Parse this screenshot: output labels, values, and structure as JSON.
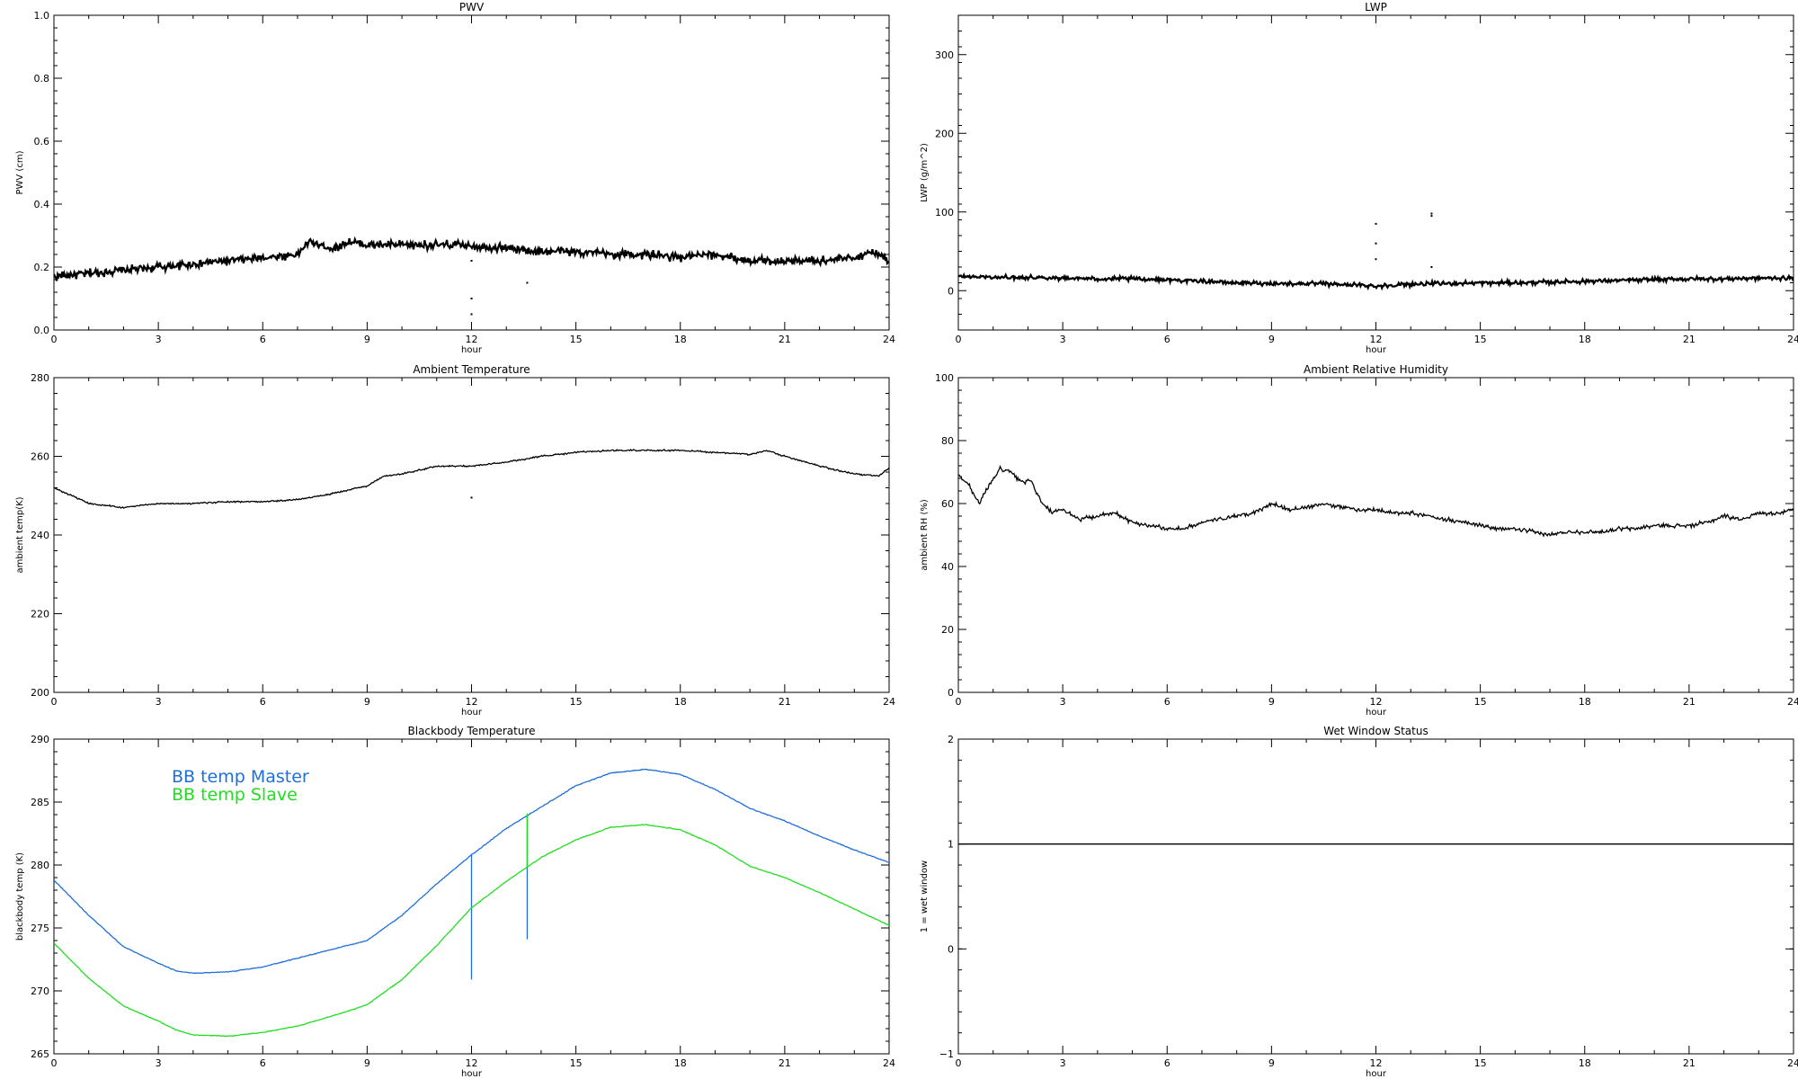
{
  "chart_data": [
    {
      "type": "line",
      "title": "PWV",
      "xlabel": "hour",
      "ylabel": "PWV (cm)",
      "xlim": [
        0,
        24
      ],
      "ylim": [
        0,
        1.0
      ],
      "xticks": [
        "0",
        "3",
        "6",
        "9",
        "12",
        "15",
        "18",
        "21",
        "24"
      ],
      "yticks": [
        "0.0",
        "0.2",
        "0.4",
        "0.6",
        "0.8",
        "1.0"
      ],
      "grid": false,
      "series": [
        {
          "color": "#000000",
          "noise": 0.008,
          "x": [
            0,
            1,
            2,
            3,
            4,
            5,
            6,
            7,
            7.3,
            8,
            8.5,
            9,
            10,
            11,
            12,
            13,
            14,
            15,
            16,
            17,
            18,
            19,
            20,
            21,
            22,
            23,
            23.5,
            24
          ],
          "y": [
            0.17,
            0.18,
            0.19,
            0.2,
            0.21,
            0.22,
            0.23,
            0.24,
            0.28,
            0.26,
            0.28,
            0.27,
            0.27,
            0.27,
            0.27,
            0.26,
            0.25,
            0.25,
            0.24,
            0.24,
            0.23,
            0.24,
            0.22,
            0.22,
            0.22,
            0.23,
            0.25,
            0.22
          ]
        }
      ],
      "outliers": [
        [
          12,
          0.05
        ],
        [
          12,
          0.1
        ],
        [
          12,
          0.22
        ],
        [
          13.6,
          0.15
        ]
      ]
    },
    {
      "type": "line",
      "title": "LWP",
      "xlabel": "hour",
      "ylabel": "LWP (g/m^2)",
      "xlim": [
        0,
        24
      ],
      "ylim": [
        -50,
        350
      ],
      "xticks": [
        "0",
        "3",
        "6",
        "9",
        "12",
        "15",
        "18",
        "21",
        "24"
      ],
      "yticks": [
        "0",
        "100",
        "200",
        "300"
      ],
      "grid": false,
      "series": [
        {
          "color": "#000000",
          "noise": 1.6,
          "x": [
            0,
            1,
            2,
            3,
            4,
            5,
            6,
            7,
            8,
            9,
            10,
            11,
            12,
            13,
            14,
            15,
            16,
            17,
            18,
            19,
            20,
            21,
            22,
            23,
            24
          ],
          "y": [
            18,
            17,
            17,
            16,
            15,
            15,
            14,
            12,
            10,
            9,
            9,
            8,
            6,
            8,
            9,
            10,
            10,
            11,
            12,
            13,
            14,
            15,
            15,
            16,
            16
          ]
        }
      ],
      "outliers": [
        [
          12,
          40
        ],
        [
          12,
          60
        ],
        [
          12,
          85
        ],
        [
          13.6,
          30
        ],
        [
          13.6,
          95
        ],
        [
          13.6,
          98
        ]
      ]
    },
    {
      "type": "line",
      "title": "Ambient Temperature",
      "xlabel": "hour",
      "ylabel": "ambient temp(K)",
      "xlim": [
        0,
        24
      ],
      "ylim": [
        200,
        280
      ],
      "xticks": [
        "0",
        "3",
        "6",
        "9",
        "12",
        "15",
        "18",
        "21",
        "24"
      ],
      "yticks": [
        "200",
        "220",
        "240",
        "260",
        "280"
      ],
      "grid": false,
      "series": [
        {
          "color": "#000000",
          "noise": 0.12,
          "x": [
            0,
            0.5,
            1,
            1.5,
            2,
            3,
            4,
            5,
            6,
            7,
            8,
            9,
            9.5,
            10,
            11,
            12,
            13,
            14,
            15,
            16,
            17,
            18,
            19,
            20,
            20.5,
            21,
            22,
            23,
            23.7,
            24
          ],
          "y": [
            252,
            250,
            248,
            247.5,
            247,
            248,
            248,
            248.5,
            248.5,
            249,
            250.5,
            252.5,
            255,
            255.5,
            257.5,
            257.5,
            258.5,
            260,
            261,
            261.5,
            261.5,
            261.5,
            261,
            260.5,
            261.5,
            260,
            257.5,
            255.5,
            255,
            257
          ]
        }
      ],
      "outliers": [
        [
          12,
          249.5
        ]
      ]
    },
    {
      "type": "line",
      "title": "Ambient Relative Humidity",
      "xlabel": "hour",
      "ylabel": "ambient RH (%)",
      "xlim": [
        0,
        24
      ],
      "ylim": [
        0,
        100
      ],
      "xticks": [
        "0",
        "3",
        "6",
        "9",
        "12",
        "15",
        "18",
        "21",
        "24"
      ],
      "yticks": [
        "0",
        "20",
        "40",
        "60",
        "80",
        "100"
      ],
      "grid": false,
      "series": [
        {
          "color": "#000000",
          "noise": 0.4,
          "x": [
            0,
            0.3,
            0.6,
            0.9,
            1.2,
            1.5,
            1.8,
            2.1,
            2.4,
            2.7,
            3,
            3.5,
            4,
            4.5,
            5,
            5.5,
            6,
            6.5,
            7,
            7.5,
            8,
            8.5,
            9,
            9.5,
            10,
            10.5,
            11,
            11.5,
            12,
            12.5,
            13,
            13.5,
            14,
            14.5,
            15,
            15.5,
            16,
            16.5,
            17,
            17.5,
            18,
            18.5,
            19,
            19.5,
            20,
            20.5,
            21,
            21.5,
            22,
            22.5,
            23,
            23.5,
            24
          ],
          "y": [
            69,
            66,
            60,
            66,
            71,
            70,
            67,
            67,
            60,
            57,
            58,
            55,
            56,
            57,
            54,
            53,
            52,
            52,
            54,
            55,
            56,
            57,
            60,
            58,
            59,
            60,
            59,
            58,
            58,
            57,
            57,
            56,
            55,
            54,
            53,
            52,
            52,
            51,
            50,
            51,
            51,
            51,
            52,
            52,
            53,
            53,
            53,
            54,
            56,
            55,
            57,
            57,
            58
          ]
        }
      ],
      "outliers": []
    },
    {
      "type": "line",
      "title": "Blackbody Temperature",
      "xlabel": "hour",
      "ylabel": "blackbody temp (K)",
      "xlim": [
        0,
        24
      ],
      "ylim": [
        265,
        290
      ],
      "xticks": [
        "0",
        "3",
        "6",
        "9",
        "12",
        "15",
        "18",
        "21",
        "24"
      ],
      "yticks": [
        "265",
        "270",
        "275",
        "280",
        "285",
        "290"
      ],
      "grid": false,
      "legend": "top-left",
      "series": [
        {
          "name": "BB temp Master",
          "color": "#1f6fd8",
          "noise": 0.02,
          "x": [
            0,
            1,
            2,
            3,
            3.5,
            4,
            5,
            6,
            7,
            8,
            9,
            10,
            11,
            12,
            13,
            14,
            15,
            16,
            17,
            18,
            19,
            20,
            21,
            22,
            23,
            24
          ],
          "y": [
            278.8,
            276,
            273.5,
            272.2,
            271.6,
            271.4,
            271.5,
            271.9,
            272.6,
            273.3,
            274,
            276,
            278.5,
            280.8,
            282.9,
            284.6,
            286.3,
            287.3,
            287.6,
            287.2,
            286,
            284.5,
            283.5,
            282.3,
            281.2,
            280.2
          ],
          "spikes": [
            [
              12,
              270.9
            ],
            [
              13.6,
              274.1
            ]
          ]
        },
        {
          "name": "BB temp Slave",
          "color": "#22dd22",
          "noise": 0.02,
          "x": [
            0,
            1,
            2,
            3,
            3.5,
            4,
            5,
            6,
            7,
            8,
            9,
            10,
            11,
            12,
            13,
            14,
            15,
            16,
            17,
            18,
            19,
            20,
            21,
            22,
            23,
            24
          ],
          "y": [
            273.8,
            271,
            268.8,
            267.6,
            266.9,
            266.5,
            266.4,
            266.7,
            267.2,
            268,
            268.9,
            270.9,
            273.6,
            276.6,
            278.7,
            280.6,
            282,
            283,
            283.2,
            282.8,
            281.6,
            279.9,
            279,
            277.8,
            276.5,
            275.2
          ],
          "spikes": [
            [
              13.6,
              284.1
            ]
          ]
        }
      ],
      "outliers": []
    },
    {
      "type": "line",
      "title": "Wet Window Status",
      "xlabel": "hour",
      "ylabel": "1 = wet window",
      "xlim": [
        0,
        24
      ],
      "ylim": [
        -1,
        2
      ],
      "xticks": [
        "0",
        "3",
        "6",
        "9",
        "12",
        "15",
        "18",
        "21",
        "24"
      ],
      "yticks": [
        "−1",
        "0",
        "1",
        "2"
      ],
      "grid": false,
      "series": [
        {
          "color": "#000000",
          "noise": 0,
          "x": [
            0,
            24
          ],
          "y": [
            1,
            1
          ]
        }
      ],
      "outliers": []
    }
  ]
}
